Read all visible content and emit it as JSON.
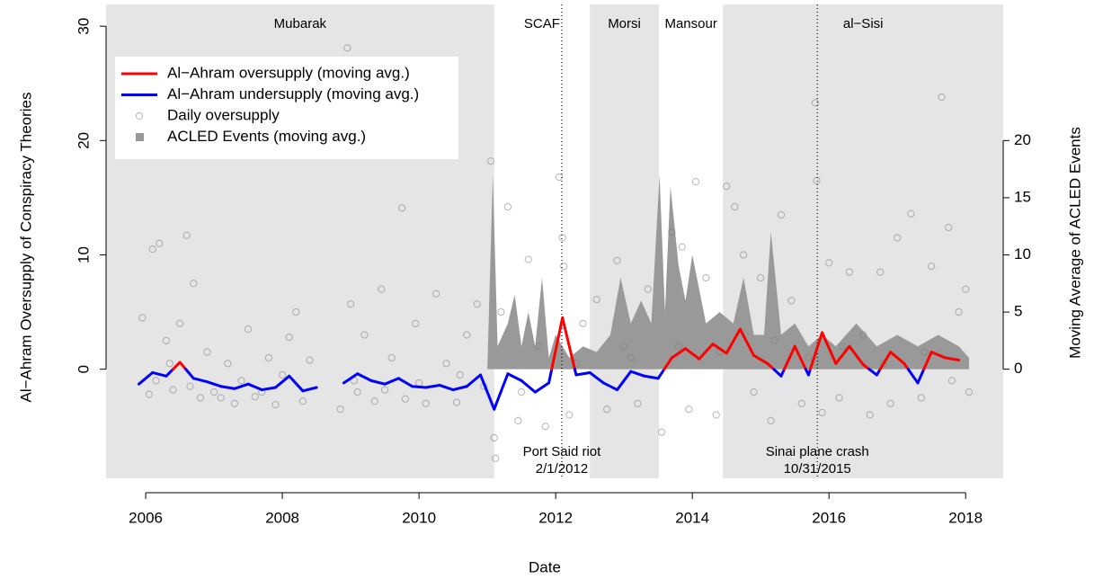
{
  "chart_data": {
    "type": "line",
    "x_label": "Date",
    "y_label": "Al−Ahram Oversupply of Conspiracy Theories",
    "y2_label": "Moving Average of ACLED Events",
    "xlim": [
      2005.42,
      2018.55
    ],
    "xticks": [
      2006,
      2008,
      2010,
      2012,
      2014,
      2016,
      2018
    ],
    "ylim": [
      -10.8,
      31.9
    ],
    "yticks": [
      0,
      10,
      20,
      30
    ],
    "y2lim": [
      -10.8,
      31.9
    ],
    "y2ticks": [
      0,
      5,
      10,
      15,
      20
    ],
    "legend": "top-left",
    "shade_color": "#e5e5e5",
    "regimes": [
      {
        "name": "Mubarak",
        "start": 2005.42,
        "end": 2011.1,
        "shaded": true
      },
      {
        "name": "SCAF",
        "start": 2011.1,
        "end": 2012.5,
        "shaded": false
      },
      {
        "name": "Morsi",
        "start": 2012.5,
        "end": 2013.51,
        "shaded": true
      },
      {
        "name": "Mansour",
        "start": 2013.51,
        "end": 2014.45,
        "shaded": false
      },
      {
        "name": "al−Sisi",
        "start": 2014.45,
        "end": 2018.55,
        "shaded": true
      }
    ],
    "events": [
      {
        "x": 2012.09,
        "label": [
          "Port Said riot",
          "2/1/2012"
        ]
      },
      {
        "x": 2015.83,
        "label": [
          "Sinai plane crash",
          "10/31/2015"
        ]
      }
    ],
    "series": [
      {
        "name": "Al−Ahram oversupply (moving avg.)",
        "type": "line",
        "color": "#ff0000",
        "x": [
          2005.9,
          2006.1,
          2006.3,
          2006.5,
          2006.7,
          2006.9,
          2007.1,
          2007.3,
          2007.5,
          2007.7,
          2007.9,
          2008.1,
          2008.3,
          2008.5,
          2008.7,
          2008.9,
          2009.1,
          2009.3,
          2009.5,
          2009.7,
          2009.9,
          2010.1,
          2010.3,
          2010.5,
          2010.7,
          2010.9,
          2011.1,
          2011.3,
          2011.5,
          2011.7,
          2011.9,
          2012.1,
          2012.3,
          2012.5,
          2012.7,
          2012.9,
          2013.1,
          2013.3,
          2013.5,
          2013.7,
          2013.9,
          2014.1,
          2014.3,
          2014.5,
          2014.7,
          2014.9,
          2015.1,
          2015.3,
          2015.5,
          2015.7,
          2015.9,
          2016.1,
          2016.3,
          2016.5,
          2016.7,
          2016.9,
          2017.1,
          2017.3,
          2017.5,
          2017.7,
          2017.9
        ],
        "values": [
          null,
          null,
          null,
          0.6,
          null,
          null,
          null,
          null,
          null,
          null,
          null,
          null,
          null,
          null,
          null,
          null,
          null,
          null,
          null,
          null,
          null,
          null,
          null,
          null,
          null,
          null,
          null,
          null,
          null,
          null,
          null,
          4.5,
          null,
          null,
          null,
          null,
          null,
          null,
          null,
          1.0,
          1.8,
          0.9,
          2.2,
          1.4,
          3.5,
          1.2,
          0.5,
          null,
          2.0,
          null,
          3.2,
          0.5,
          2.0,
          0.4,
          null,
          1.5,
          0.5,
          null,
          1.5,
          1.0,
          0.8
        ]
      },
      {
        "name": "Al−Ahram undersupply (moving avg.)",
        "type": "line",
        "color": "#0000ff",
        "x": [
          2005.9,
          2006.1,
          2006.3,
          2006.5,
          2006.7,
          2006.9,
          2007.1,
          2007.3,
          2007.5,
          2007.7,
          2007.9,
          2008.1,
          2008.3,
          2008.5,
          2008.7,
          2008.9,
          2009.1,
          2009.3,
          2009.5,
          2009.7,
          2009.9,
          2010.1,
          2010.3,
          2010.5,
          2010.7,
          2010.9,
          2011.1,
          2011.3,
          2011.5,
          2011.7,
          2011.9,
          2012.1,
          2012.3,
          2012.5,
          2012.7,
          2012.9,
          2013.1,
          2013.3,
          2013.5,
          2013.7,
          2013.9,
          2014.1,
          2014.3,
          2014.5,
          2014.7,
          2014.9,
          2015.1,
          2015.3,
          2015.5,
          2015.7,
          2015.9,
          2016.1,
          2016.3,
          2016.5,
          2016.7,
          2016.9,
          2017.1,
          2017.3,
          2017.5,
          2017.7,
          2017.9
        ],
        "values": [
          -1.3,
          -0.3,
          -0.6,
          null,
          -0.8,
          -1.1,
          -1.5,
          -1.7,
          -1.3,
          -1.8,
          -1.6,
          -0.6,
          -1.9,
          -1.6,
          null,
          -1.2,
          -0.4,
          -1.0,
          -1.3,
          -0.8,
          -1.5,
          -1.6,
          -1.4,
          -1.8,
          -1.5,
          -0.5,
          -3.5,
          -0.4,
          -1.0,
          -2.0,
          -1.2,
          null,
          -0.5,
          -0.3,
          -1.2,
          -1.8,
          -0.2,
          -0.6,
          -0.8,
          null,
          null,
          null,
          null,
          null,
          null,
          null,
          null,
          -0.6,
          null,
          -0.5,
          null,
          null,
          null,
          null,
          -0.5,
          null,
          null,
          -1.2,
          null,
          null,
          null
        ]
      },
      {
        "name": "Daily oversupply",
        "type": "scatter",
        "color": "#7a7a7a",
        "x": [
          2005.95,
          2006.05,
          2006.1,
          2006.2,
          2006.3,
          2006.4,
          2006.5,
          2006.6,
          2006.7,
          2006.8,
          2006.9,
          2007.0,
          2007.2,
          2007.3,
          2007.5,
          2007.6,
          2007.8,
          2007.9,
          2008.1,
          2008.2,
          2008.3,
          2008.4,
          2008.85,
          2008.95,
          2009.0,
          2009.1,
          2009.2,
          2009.35,
          2009.45,
          2009.6,
          2009.75,
          2009.8,
          2009.95,
          2010.1,
          2010.25,
          2010.4,
          2010.55,
          2010.7,
          2010.85,
          2010.95,
          2011.05,
          2011.1,
          2011.12,
          2011.2,
          2011.3,
          2011.45,
          2011.6,
          2011.75,
          2011.85,
          2012.05,
          2012.1,
          2012.12,
          2012.2,
          2012.4,
          2012.6,
          2012.75,
          2012.9,
          2013.0,
          2013.2,
          2013.35,
          2013.55,
          2013.7,
          2013.85,
          2013.95,
          2014.05,
          2014.2,
          2014.35,
          2014.5,
          2014.62,
          2014.75,
          2014.9,
          2015.0,
          2015.15,
          2015.3,
          2015.45,
          2015.6,
          2015.8,
          2015.82,
          2015.9,
          2016.0,
          2016.15,
          2016.3,
          2016.5,
          2016.6,
          2016.75,
          2016.9,
          2017.0,
          2017.2,
          2017.35,
          2017.5,
          2017.65,
          2017.75,
          2017.9,
          2018.0,
          2018.05,
          2006.15,
          2006.35,
          2006.65,
          2007.1,
          2007.4,
          2007.7,
          2008.0,
          2009.05,
          2009.5,
          2010.0,
          2010.6,
          2011.5,
          2012.3,
          2013.1,
          2013.8,
          2014.4,
          2015.2,
          2015.7,
          2016.2,
          2016.8,
          2017.4,
          2017.8
        ],
        "values": [
          4.5,
          -2.2,
          10.5,
          11,
          2.5,
          -1.8,
          4,
          11.7,
          7.5,
          -2.5,
          1.5,
          -2,
          0.5,
          -3,
          3.5,
          -2.4,
          1,
          -3.1,
          2.8,
          5,
          -2.8,
          0.8,
          -3.5,
          28.1,
          5.7,
          -2,
          3,
          -2.8,
          7,
          1,
          14.1,
          -2.6,
          4,
          -3,
          6.6,
          0.5,
          -2.9,
          3,
          5.7,
          -1.5,
          18.2,
          -6,
          -7.8,
          5,
          14.2,
          -4.5,
          9.6,
          2,
          -5,
          16.8,
          11.5,
          9,
          -4,
          4,
          6.1,
          -3.5,
          9.5,
          2,
          -3,
          7,
          -5.5,
          12,
          10.7,
          -3.5,
          16.4,
          8,
          -4,
          16,
          14.2,
          10,
          -2,
          8,
          -4.5,
          13.5,
          6,
          -3,
          23.3,
          16.5,
          -3.8,
          9.3,
          -2.5,
          8.5,
          3,
          -4,
          8.5,
          -3,
          11.5,
          13.6,
          -2.5,
          9,
          23.8,
          12.4,
          5,
          7,
          -2,
          -1,
          0.5,
          -1.5,
          -2.5,
          -1,
          -2,
          -0.5,
          -1,
          -1.8,
          -1.2,
          -0.5,
          -2,
          0.5,
          1,
          2,
          1.5,
          2.5,
          1,
          2,
          0.5,
          1.5,
          -1
        ]
      },
      {
        "name": "ACLED Events (moving avg.)",
        "type": "area",
        "axis": "y2",
        "color": "#999999",
        "x": [
          2011.0,
          2011.08,
          2011.15,
          2011.3,
          2011.4,
          2011.5,
          2011.6,
          2011.7,
          2011.8,
          2011.9,
          2012.0,
          2012.2,
          2012.4,
          2012.6,
          2012.8,
          2012.95,
          2013.1,
          2013.25,
          2013.4,
          2013.52,
          2013.6,
          2013.68,
          2013.8,
          2013.9,
          2014.0,
          2014.2,
          2014.4,
          2014.6,
          2014.75,
          2014.9,
          2015.05,
          2015.15,
          2015.3,
          2015.5,
          2015.7,
          2015.9,
          2016.1,
          2016.4,
          2016.7,
          2017.0,
          2017.3,
          2017.6,
          2017.9,
          2018.05
        ],
        "values": [
          0,
          17,
          2,
          4,
          6.5,
          2,
          5,
          2,
          8,
          1,
          3,
          1,
          2,
          1.5,
          3,
          8,
          4,
          6,
          4,
          17,
          5,
          16,
          9,
          6,
          10,
          4,
          5,
          4,
          8,
          3,
          3,
          12,
          3,
          4,
          2,
          3,
          2,
          4,
          2,
          3,
          2,
          3,
          2,
          1
        ]
      }
    ]
  }
}
